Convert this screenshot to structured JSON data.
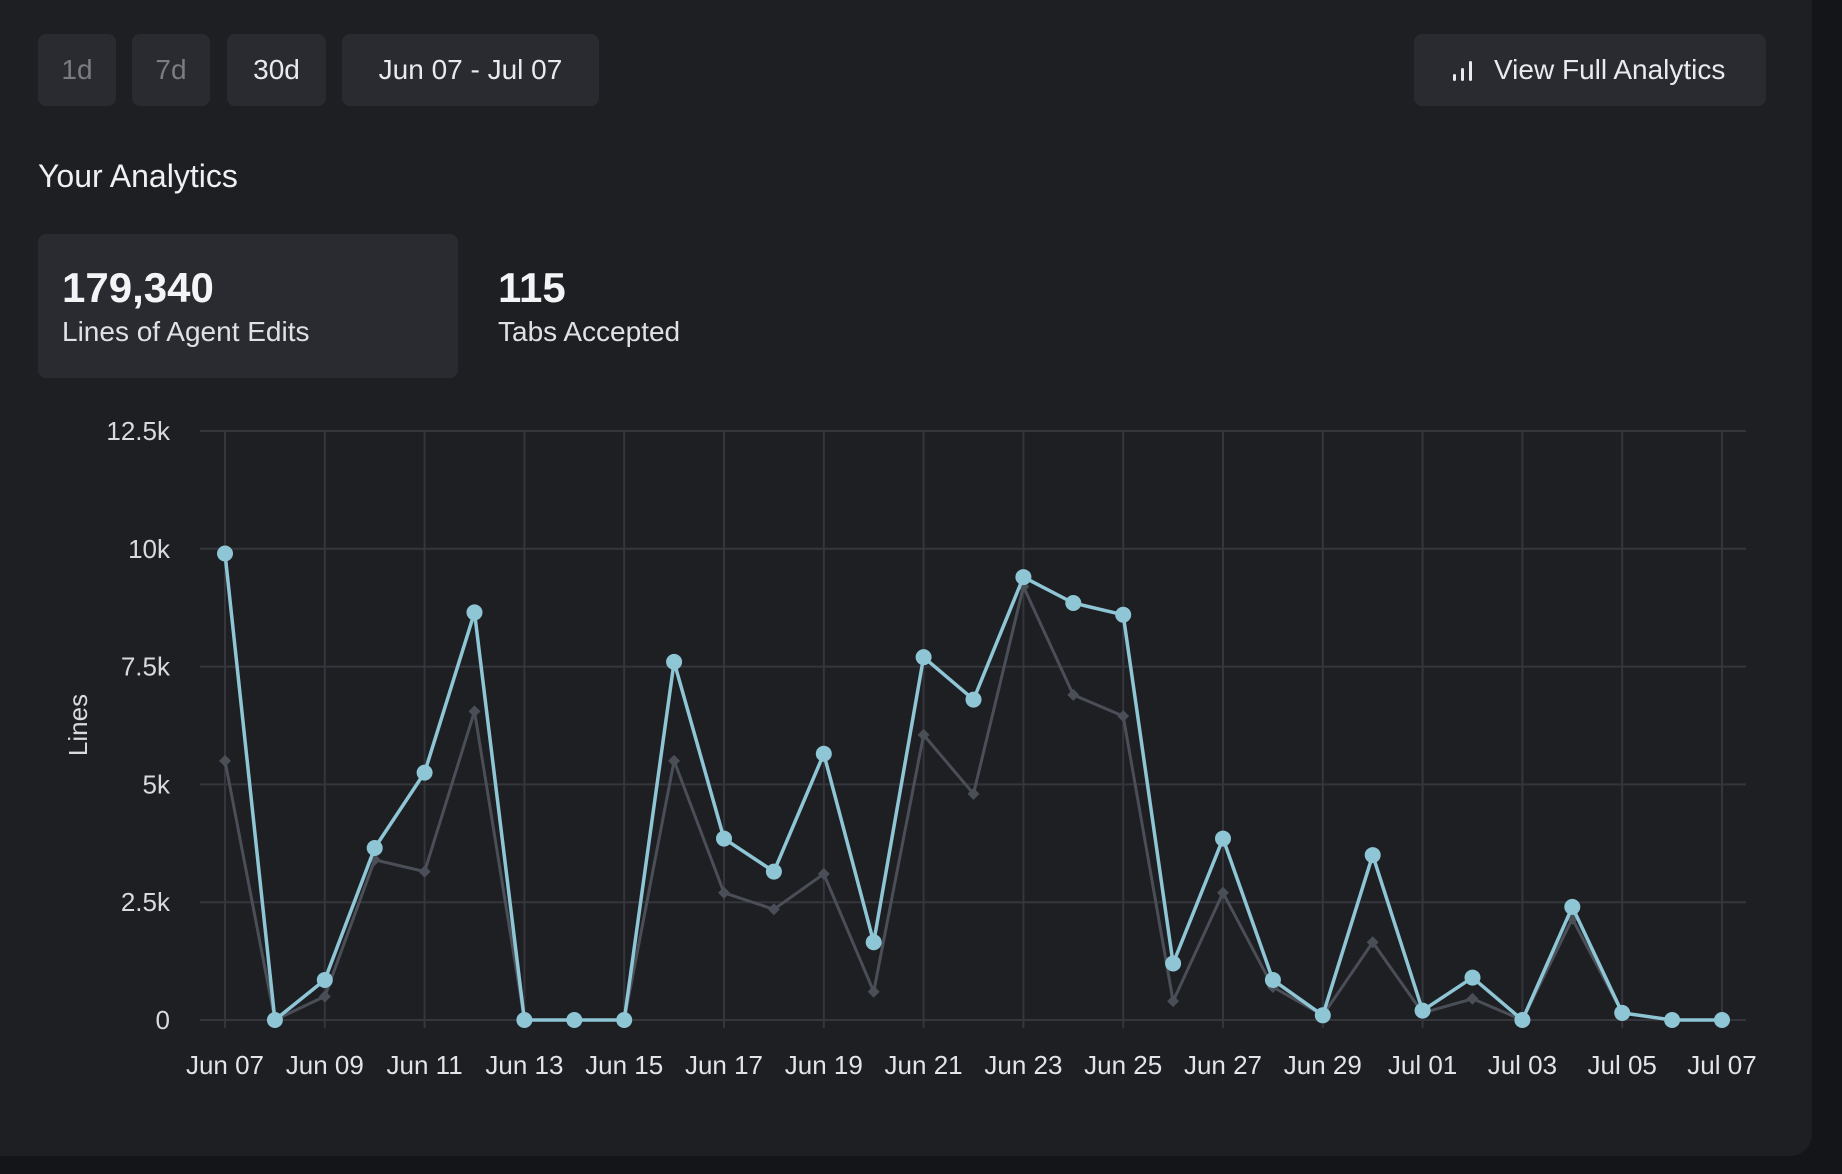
{
  "range_buttons": [
    "1d",
    "7d",
    "30d"
  ],
  "date_range": "Jun 07 - Jul 07",
  "full_analytics_label": "View Full Analytics",
  "section_title": "Your Analytics",
  "stats": [
    {
      "value": "179,340",
      "label": "Lines of Agent Edits"
    },
    {
      "value": "115",
      "label": "Tabs Accepted"
    }
  ],
  "colors": {
    "accent": "#8ec6d6",
    "secondary": "#4a4e57"
  },
  "chart_data": {
    "type": "line",
    "ylabel": "Lines",
    "ylim": [
      0,
      12500
    ],
    "yticks": [
      "0",
      "2.5k",
      "5k",
      "7.5k",
      "10k",
      "12.5k"
    ],
    "xtick_labels": [
      "Jun 07",
      "Jun 09",
      "Jun 11",
      "Jun 13",
      "Jun 15",
      "Jun 17",
      "Jun 19",
      "Jun 21",
      "Jun 23",
      "Jun 25",
      "Jun 27",
      "Jun 29",
      "Jul 01",
      "Jul 03",
      "Jul 05",
      "Jul 07"
    ],
    "x": [
      "Jun 07",
      "Jun 08",
      "Jun 09",
      "Jun 10",
      "Jun 11",
      "Jun 12",
      "Jun 13",
      "Jun 14",
      "Jun 15",
      "Jun 16",
      "Jun 17",
      "Jun 18",
      "Jun 19",
      "Jun 20",
      "Jun 21",
      "Jun 22",
      "Jun 23",
      "Jun 24",
      "Jun 25",
      "Jun 26",
      "Jun 27",
      "Jun 28",
      "Jun 29",
      "Jun 30",
      "Jul 01",
      "Jul 02",
      "Jul 03",
      "Jul 04",
      "Jul 05",
      "Jul 06",
      "Jul 07"
    ],
    "grid": true,
    "series": [
      {
        "color": "#8ec6d6",
        "marker": "circle",
        "values": [
          9900,
          0,
          850,
          3650,
          5250,
          8650,
          0,
          0,
          0,
          7600,
          3850,
          3150,
          5650,
          1650,
          7700,
          6800,
          9400,
          8850,
          8600,
          1200,
          3850,
          850,
          100,
          3500,
          200,
          900,
          0,
          2400,
          150,
          0,
          0
        ]
      },
      {
        "color": "#4a4e57",
        "marker": "diamond",
        "values": [
          5500,
          0,
          500,
          3400,
          3150,
          6550,
          0,
          0,
          0,
          5500,
          2700,
          2350,
          3100,
          600,
          6050,
          4800,
          9200,
          6900,
          6450,
          400,
          2700,
          700,
          100,
          1650,
          150,
          450,
          0,
          2150,
          150,
          0,
          0
        ]
      }
    ]
  }
}
